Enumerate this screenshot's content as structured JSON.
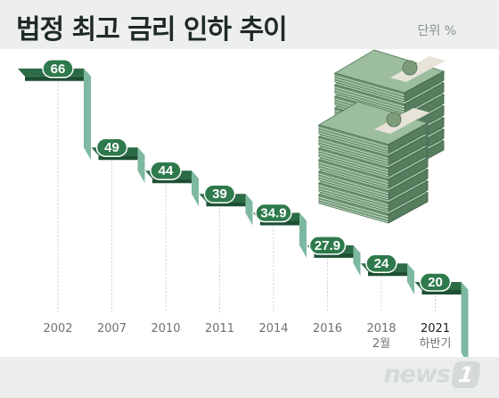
{
  "title": "법정 최고 금리 인하 추이",
  "unit_label": "단위 %",
  "colors": {
    "bar_top": "#2b6b45",
    "bar_side": "#7db8a0",
    "pill": "#2e7a4d",
    "grid": "#c9d1ce"
  },
  "logo": {
    "text": "news",
    "badge": "1"
  },
  "chart_data": {
    "type": "step",
    "title": "법정 최고 금리 인하 추이",
    "unit": "단위 %",
    "categories": [
      [
        "2002"
      ],
      [
        "2007"
      ],
      [
        "2010"
      ],
      [
        "2011"
      ],
      [
        "2014"
      ],
      [
        "2016"
      ],
      [
        "2018",
        "2월"
      ],
      [
        "2021",
        "하반기"
      ]
    ],
    "values": [
      "66",
      "49",
      "44",
      "39",
      "34.9",
      "27.9",
      "24",
      "20"
    ],
    "ylim": [
      0,
      70
    ],
    "grid": "vertical dashed",
    "illustration": "stacked 10000-won banknote bundles"
  }
}
